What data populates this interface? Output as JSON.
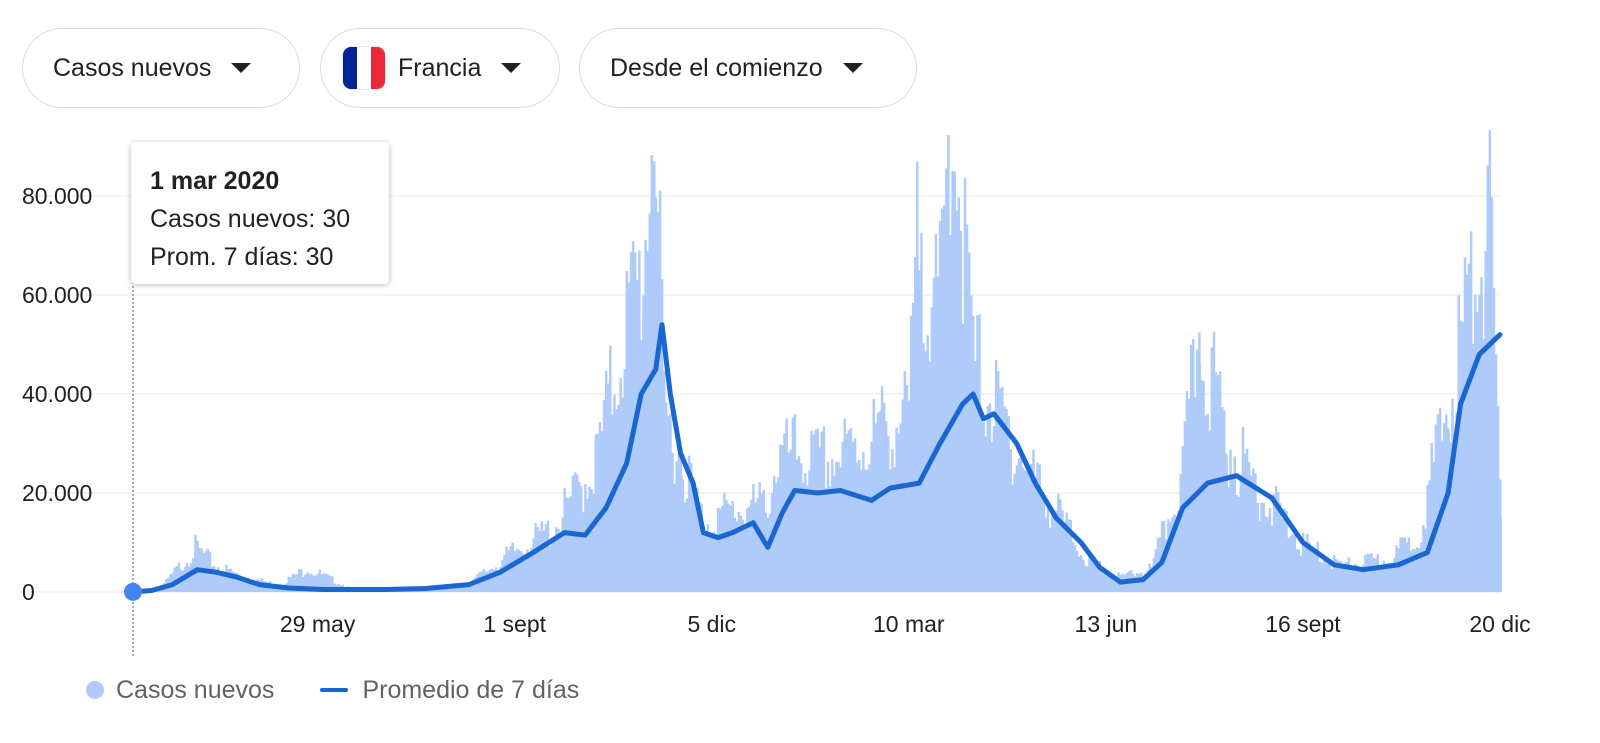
{
  "filters": {
    "metric": "Casos nuevos",
    "country": "Francia",
    "range": "Desde el comienzo"
  },
  "flag_colors": [
    "#002395",
    "#ffffff",
    "#ed2939"
  ],
  "tooltip": {
    "date": "1 mar 2020",
    "cases_line": "Casos nuevos: 30",
    "avg_line": "Prom. 7 días: 30"
  },
  "legend": {
    "bars_label": "Casos nuevos",
    "line_label": "Promedio de 7 días"
  },
  "colors": {
    "bars": "#aecbfa",
    "line": "#1a67d2",
    "marker": "#4285f4",
    "grid": "#e8eaed"
  },
  "chart_data": {
    "type": "bar",
    "title": "",
    "xlabel": "",
    "ylabel": "",
    "x_start": "2020-03-01",
    "x_end": "2021-12-20",
    "ylim": [
      0,
      80000
    ],
    "yticks": [
      0,
      20000,
      40000,
      60000,
      80000
    ],
    "ytick_labels": [
      "0",
      "20.000",
      "40.000",
      "60.000",
      "80.000"
    ],
    "xtick_labels": [
      "29 may",
      "1 sept",
      "5 dic",
      "10 mar",
      "13 jun",
      "16 sept",
      "20 dic"
    ],
    "xtick_dates": [
      "2020-05-29",
      "2020-09-01",
      "2020-12-05",
      "2021-03-10",
      "2021-06-13",
      "2021-09-16",
      "2021-12-20"
    ],
    "grid": true,
    "legend_position": "bottom-left",
    "series": [
      {
        "name": "Casos nuevos",
        "type": "bar",
        "points": [
          [
            "2020-03-01",
            30
          ],
          [
            "2020-03-15",
            900
          ],
          [
            "2020-03-31",
            7500
          ],
          [
            "2020-04-10",
            4500
          ],
          [
            "2020-04-20",
            3000
          ],
          [
            "2020-05-10",
            1200
          ],
          [
            "2020-05-24",
            4000
          ],
          [
            "2020-06-15",
            500
          ],
          [
            "2020-07-15",
            500
          ],
          [
            "2020-08-10",
            1500
          ],
          [
            "2020-09-01",
            7000
          ],
          [
            "2020-09-20",
            11000
          ],
          [
            "2020-10-10",
            22000
          ],
          [
            "2020-10-24",
            45000
          ],
          [
            "2020-11-02",
            55000
          ],
          [
            "2020-11-07",
            87000
          ],
          [
            "2020-11-12",
            30000
          ],
          [
            "2020-11-20",
            24000
          ],
          [
            "2020-12-01",
            12000
          ],
          [
            "2020-12-15",
            14000
          ],
          [
            "2021-01-01",
            15000
          ],
          [
            "2021-01-05",
            22000
          ],
          [
            "2021-01-15",
            24000
          ],
          [
            "2021-01-25",
            22000
          ],
          [
            "2021-02-10",
            24000
          ],
          [
            "2021-02-25",
            28000
          ],
          [
            "2021-03-10",
            30000
          ],
          [
            "2021-03-15",
            65000
          ],
          [
            "2021-03-24",
            45000
          ],
          [
            "2021-03-31",
            85000
          ],
          [
            "2021-04-10",
            40000
          ],
          [
            "2021-04-20",
            32000
          ],
          [
            "2021-05-05",
            22000
          ],
          [
            "2021-05-20",
            14000
          ],
          [
            "2021-06-05",
            5000
          ],
          [
            "2021-06-20",
            2500
          ],
          [
            "2021-07-05",
            4000
          ],
          [
            "2021-07-20",
            20000
          ],
          [
            "2021-07-28",
            46000
          ],
          [
            "2021-08-10",
            26000
          ],
          [
            "2021-08-25",
            18000
          ],
          [
            "2021-09-16",
            8000
          ],
          [
            "2021-10-05",
            4500
          ],
          [
            "2021-10-25",
            5500
          ],
          [
            "2021-11-10",
            9000
          ],
          [
            "2021-11-25",
            32000
          ],
          [
            "2021-12-05",
            50000
          ],
          [
            "2021-12-15",
            66000
          ],
          [
            "2021-12-20",
            15000
          ]
        ]
      },
      {
        "name": "Promedio de 7 días",
        "type": "line",
        "points": [
          [
            "2020-03-01",
            30
          ],
          [
            "2020-03-10",
            300
          ],
          [
            "2020-03-20",
            1500
          ],
          [
            "2020-04-01",
            4500
          ],
          [
            "2020-04-10",
            4000
          ],
          [
            "2020-04-20",
            3000
          ],
          [
            "2020-05-01",
            1500
          ],
          [
            "2020-05-15",
            800
          ],
          [
            "2020-06-01",
            500
          ],
          [
            "2020-07-01",
            500
          ],
          [
            "2020-07-20",
            700
          ],
          [
            "2020-08-10",
            1500
          ],
          [
            "2020-08-25",
            4000
          ],
          [
            "2020-09-10",
            8000
          ],
          [
            "2020-09-25",
            12000
          ],
          [
            "2020-10-05",
            11500
          ],
          [
            "2020-10-15",
            17000
          ],
          [
            "2020-10-25",
            26000
          ],
          [
            "2020-11-01",
            40000
          ],
          [
            "2020-11-08",
            45000
          ],
          [
            "2020-11-11",
            54000
          ],
          [
            "2020-11-15",
            40000
          ],
          [
            "2020-11-20",
            28000
          ],
          [
            "2020-11-26",
            22000
          ],
          [
            "2020-12-01",
            12000
          ],
          [
            "2020-12-08",
            11000
          ],
          [
            "2020-12-15",
            12000
          ],
          [
            "2020-12-25",
            14000
          ],
          [
            "2021-01-01",
            9000
          ],
          [
            "2021-01-08",
            16000
          ],
          [
            "2021-01-14",
            20500
          ],
          [
            "2021-01-25",
            20000
          ],
          [
            "2021-02-05",
            20500
          ],
          [
            "2021-02-20",
            18500
          ],
          [
            "2021-03-01",
            21000
          ],
          [
            "2021-03-15",
            22000
          ],
          [
            "2021-03-25",
            30000
          ],
          [
            "2021-04-05",
            38000
          ],
          [
            "2021-04-10",
            40000
          ],
          [
            "2021-04-15",
            35000
          ],
          [
            "2021-04-20",
            36000
          ],
          [
            "2021-05-01",
            30000
          ],
          [
            "2021-05-10",
            22000
          ],
          [
            "2021-05-20",
            15000
          ],
          [
            "2021-06-01",
            10000
          ],
          [
            "2021-06-10",
            5000
          ],
          [
            "2021-06-20",
            2000
          ],
          [
            "2021-07-01",
            2500
          ],
          [
            "2021-07-10",
            6000
          ],
          [
            "2021-07-20",
            17000
          ],
          [
            "2021-08-01",
            22000
          ],
          [
            "2021-08-15",
            23500
          ],
          [
            "2021-09-01",
            19000
          ],
          [
            "2021-09-16",
            10000
          ],
          [
            "2021-10-01",
            5500
          ],
          [
            "2021-10-15",
            4500
          ],
          [
            "2021-11-01",
            5500
          ],
          [
            "2021-11-15",
            8000
          ],
          [
            "2021-11-25",
            20000
          ],
          [
            "2021-12-01",
            38000
          ],
          [
            "2021-12-10",
            48000
          ],
          [
            "2021-12-20",
            52000
          ]
        ]
      }
    ]
  }
}
